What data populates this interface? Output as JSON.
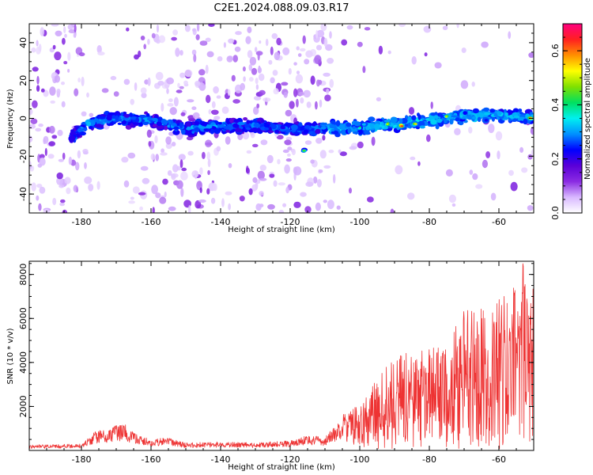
{
  "title": "C2E1.2024.088.09.03.R17",
  "chart_data": [
    {
      "type": "heatmap",
      "xlabel": "Height of straight line (km)",
      "ylabel": "Frequency (Hz)",
      "xlim": [
        -195,
        -50
      ],
      "ylim": [
        -50,
        50
      ],
      "x_ticks": [
        -180,
        -160,
        -140,
        -120,
        -100,
        -80,
        -60
      ],
      "y_ticks": [
        -40,
        -20,
        0,
        20,
        40
      ],
      "colorbar": {
        "label": "Normalized spectral amplitude",
        "range": [
          0.0,
          0.7
        ],
        "ticks": [
          0.0,
          0.2,
          0.4,
          0.6
        ],
        "colormap": [
          "#ffffff",
          "#d8b8ff",
          "#8a2be2",
          "#5a00d8",
          "#0000ff",
          "#0090ff",
          "#00f0f0",
          "#00e060",
          "#7fe000",
          "#ffff00",
          "#ff9000",
          "#ff2020",
          "#ff0080"
        ]
      },
      "band_ridge": [
        {
          "x": -183,
          "y": -10
        },
        {
          "x": -178,
          "y": -3
        },
        {
          "x": -170,
          "y": 0
        },
        {
          "x": -160,
          "y": -1
        },
        {
          "x": -150,
          "y": -5
        },
        {
          "x": -140,
          "y": -4
        },
        {
          "x": -130,
          "y": -4
        },
        {
          "x": -120,
          "y": -6
        },
        {
          "x": -110,
          "y": -5
        },
        {
          "x": -100,
          "y": -5
        },
        {
          "x": -90,
          "y": -3
        },
        {
          "x": -80,
          "y": -1
        },
        {
          "x": -70,
          "y": 1
        },
        {
          "x": -60,
          "y": 2
        },
        {
          "x": -50,
          "y": 0
        }
      ],
      "peak_points": [
        {
          "x": -116,
          "y": -17,
          "amp": 0.45
        },
        {
          "x": -100,
          "y": -5,
          "amp": 0.4
        },
        {
          "x": -92,
          "y": -3,
          "amp": 0.5
        },
        {
          "x": -88,
          "y": -4,
          "amp": 0.65
        },
        {
          "x": -84,
          "y": -3,
          "amp": 0.55
        },
        {
          "x": -75,
          "y": 1,
          "amp": 0.5
        },
        {
          "x": -51,
          "y": 0,
          "amp": 0.6
        }
      ]
    },
    {
      "type": "line",
      "xlabel": "Height of straight line (km)",
      "ylabel": "SNR (10 * v/v)",
      "xlim": [
        -195,
        -50
      ],
      "ylim": [
        0,
        8600
      ],
      "x_ticks": [
        -180,
        -160,
        -140,
        -120,
        -100,
        -80,
        -60
      ],
      "y_ticks": [
        2000,
        4000,
        6000,
        8000
      ],
      "color": "#ee3333",
      "envelope": [
        {
          "x": -195,
          "y": 250
        },
        {
          "x": -180,
          "y": 300
        },
        {
          "x": -176,
          "y": 900
        },
        {
          "x": -172,
          "y": 1000
        },
        {
          "x": -168,
          "y": 1300
        },
        {
          "x": -165,
          "y": 800
        },
        {
          "x": -160,
          "y": 500
        },
        {
          "x": -155,
          "y": 600
        },
        {
          "x": -150,
          "y": 350
        },
        {
          "x": -140,
          "y": 400
        },
        {
          "x": -130,
          "y": 350
        },
        {
          "x": -120,
          "y": 450
        },
        {
          "x": -115,
          "y": 700
        },
        {
          "x": -110,
          "y": 600
        },
        {
          "x": -105,
          "y": 1500
        },
        {
          "x": -100,
          "y": 2000
        },
        {
          "x": -95,
          "y": 3000
        },
        {
          "x": -90,
          "y": 4000
        },
        {
          "x": -85,
          "y": 4200
        },
        {
          "x": -80,
          "y": 4300
        },
        {
          "x": -75,
          "y": 4800
        },
        {
          "x": -70,
          "y": 6000
        },
        {
          "x": -65,
          "y": 6200
        },
        {
          "x": -60,
          "y": 6500
        },
        {
          "x": -55,
          "y": 7200
        },
        {
          "x": -52,
          "y": 8500
        },
        {
          "x": -50,
          "y": 7500
        }
      ]
    }
  ]
}
